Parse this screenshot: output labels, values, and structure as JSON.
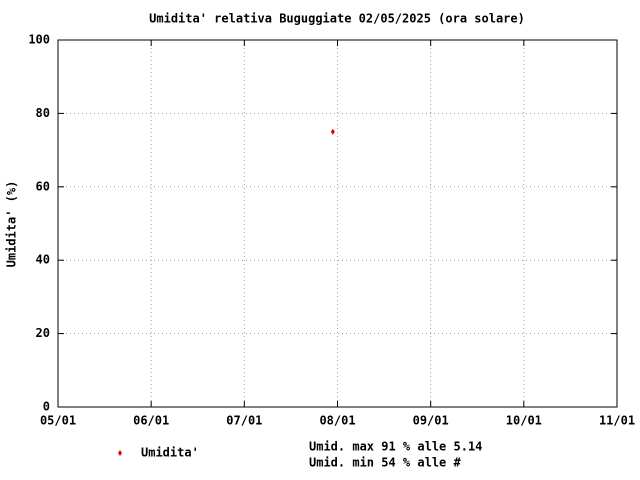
{
  "chart_data": {
    "type": "scatter",
    "title": "Umidita' relativa Buguggiate 02/05/2025 (ora solare)",
    "y_label": "Umidita' (%)",
    "series": [
      {
        "name": "Umidita'",
        "color": "#e00000",
        "x": [
          7.95
        ],
        "values": [
          75
        ]
      }
    ],
    "xlim": [
      5,
      11
    ],
    "xticks": [
      {
        "value": 5,
        "label": "05/01"
      },
      {
        "value": 6,
        "label": "06/01"
      },
      {
        "value": 7,
        "label": "07/01"
      },
      {
        "value": 8,
        "label": "08/01"
      },
      {
        "value": 9,
        "label": "09/01"
      },
      {
        "value": 10,
        "label": "10/01"
      },
      {
        "value": 11,
        "label": "11/01"
      }
    ],
    "ylim": [
      0,
      100
    ],
    "yticks": [
      0,
      20,
      40,
      60,
      80,
      100
    ],
    "grid": true,
    "annotations": [
      "Umid. max 91 % alle 5.14",
      "Umid. min 54 % alle #"
    ]
  }
}
